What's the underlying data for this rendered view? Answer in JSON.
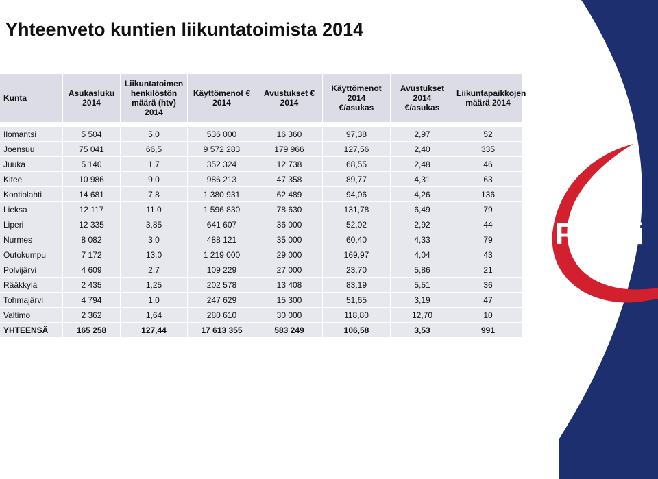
{
  "title": "Yhteenveto kuntien liikuntatoimista 2014",
  "table": {
    "headers": [
      "Kunta",
      "Asukasluku\n2014",
      "Liikuntatoimen\nhenkilöstön\nmäärä (htv) 2014",
      "Käyttömenot €\n2014",
      "Avustukset €\n2014",
      "Käyttömenot\n2014\n€/asukas",
      "Avustukset\n2014\n€/asukas",
      "Liikuntapaikkojen\nmäärä 2014"
    ],
    "rows": [
      [
        "Ilomantsi",
        "5 504",
        "5,0",
        "536 000",
        "16 360",
        "97,38",
        "2,97",
        "52"
      ],
      [
        "Joensuu",
        "75 041",
        "66,5",
        "9 572 283",
        "179 966",
        "127,56",
        "2,40",
        "335"
      ],
      [
        "Juuka",
        "5 140",
        "1,7",
        "352 324",
        "12 738",
        "68,55",
        "2,48",
        "46"
      ],
      [
        "Kitee",
        "10 986",
        "9,0",
        "986 213",
        "47 358",
        "89,77",
        "4,31",
        "63"
      ],
      [
        "Kontiolahti",
        "14 681",
        "7,8",
        "1 380 931",
        "62 489",
        "94,06",
        "4,26",
        "136"
      ],
      [
        "Lieksa",
        "12 117",
        "11,0",
        "1 596 830",
        "78 630",
        "131,78",
        "6,49",
        "79"
      ],
      [
        "Liperi",
        "12 335",
        "3,85",
        "641 607",
        "36 000",
        "52,02",
        "2,92",
        "44"
      ],
      [
        "Nurmes",
        "8 082",
        "3,0",
        "488 121",
        "35 000",
        "60,40",
        "4,33",
        "79"
      ],
      [
        "Outokumpu",
        "7 172",
        "13,0",
        "1 219 000",
        "29 000",
        "169,97",
        "4,04",
        "43"
      ],
      [
        "Polvijärvi",
        "4 609",
        "2,7",
        "109 229",
        "27 000",
        "23,70",
        "5,86",
        "21"
      ],
      [
        "Rääkkylä",
        "2 435",
        "1,25",
        "202 578",
        "13 408",
        "83,19",
        "5,51",
        "36"
      ],
      [
        "Tohmajärvi",
        "4 794",
        "1,0",
        "247 629",
        "15 300",
        "51,65",
        "3,19",
        "47"
      ],
      [
        "Valtimo",
        "2 362",
        "1,64",
        "280 610",
        "30 000",
        "118,80",
        "12,70",
        "10"
      ]
    ],
    "total": [
      "YHTEENSÄ",
      "165 258",
      "127,44",
      "17 613 355",
      "583 249",
      "106,58",
      "3,53",
      "991"
    ]
  },
  "logo": {
    "text": "Pokali",
    "colors": {
      "navy": "#1d2f6e",
      "red": "#d3202f",
      "white": "#ffffff"
    }
  }
}
